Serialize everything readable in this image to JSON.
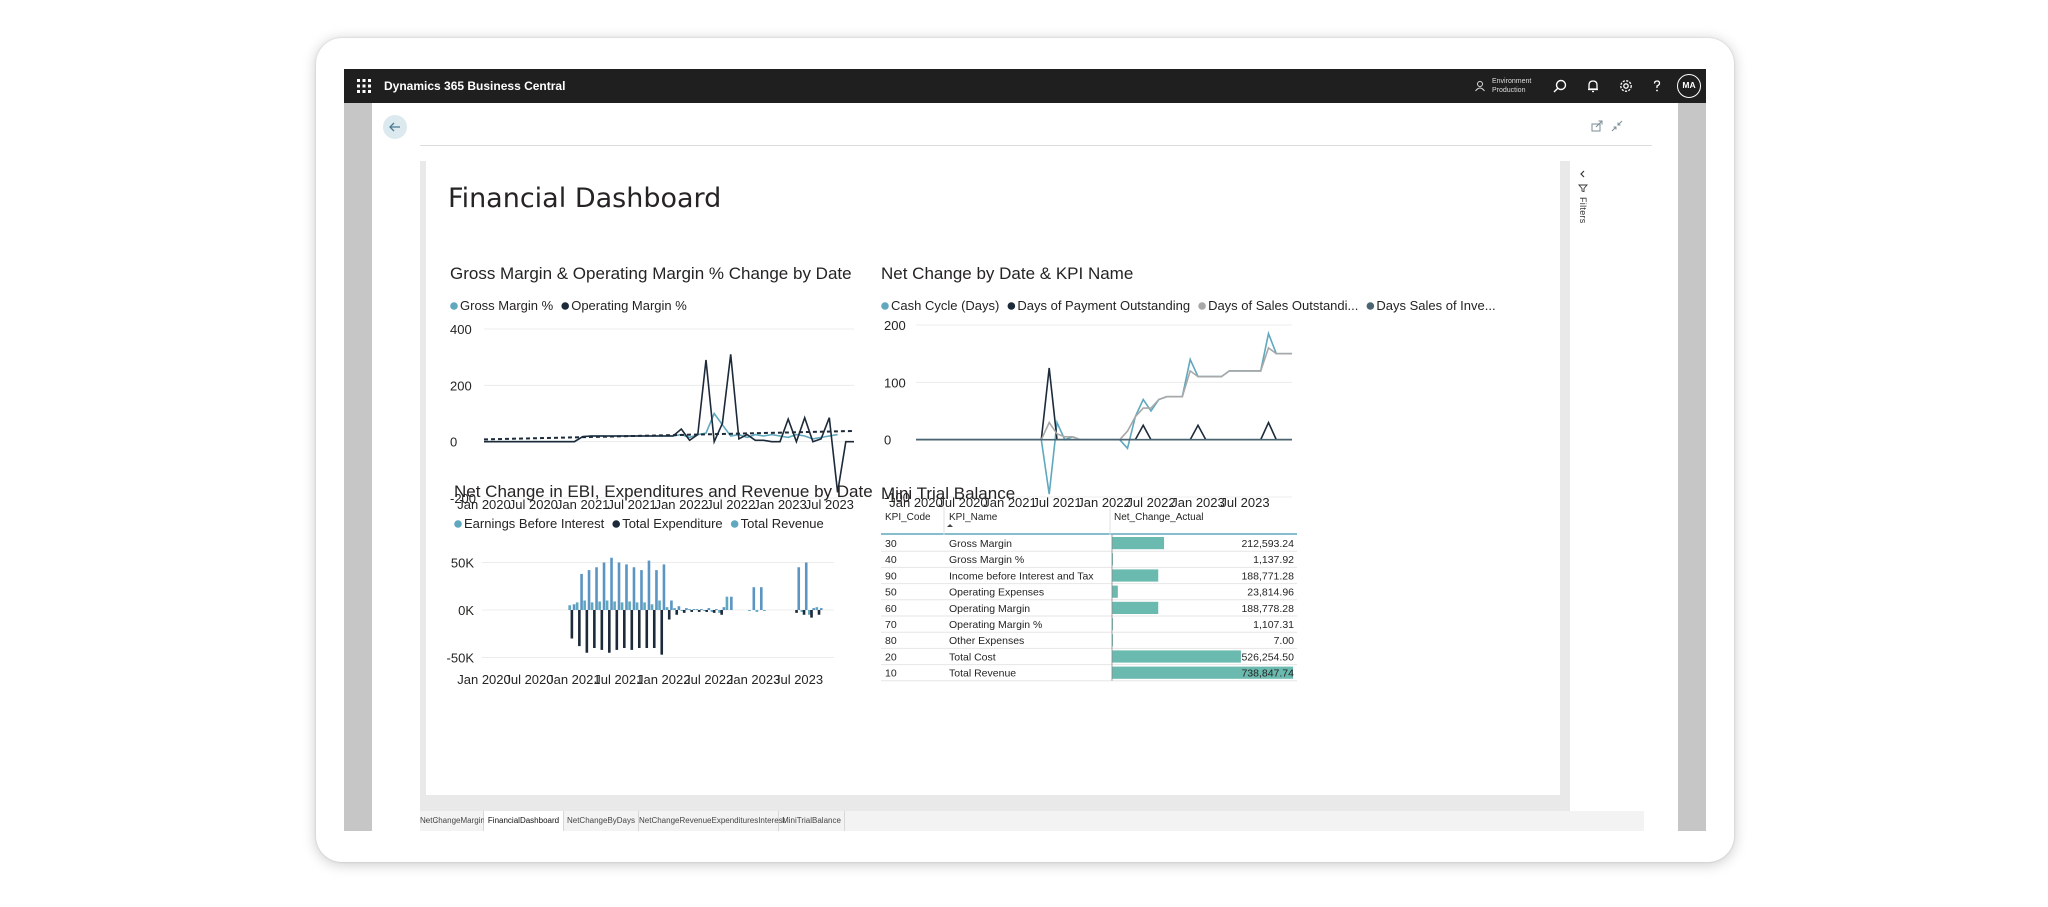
{
  "app": {
    "title": "Dynamics 365 Business Central",
    "environment_line1": "Environment",
    "environment_line2": "Production",
    "avatar_initials": "MA"
  },
  "report": {
    "title": "Financial Dashboard",
    "filters_label": "Filters"
  },
  "tabs": [
    {
      "label": "NetChangeMargin",
      "active": false
    },
    {
      "label": "FinancialDashboard",
      "active": true
    },
    {
      "label": "NetChangeByDays",
      "active": false
    },
    {
      "label": "NetChangeRevenueExpendituresInterest",
      "active": false
    },
    {
      "label": "MiniTrialBalance",
      "active": false
    }
  ],
  "colors": {
    "light_teal": "#5fa8be",
    "dark_navy": "#1c2a3a",
    "gray": "#a8a8a8",
    "slate": "#4a6472",
    "bar_teal": "#6bbab0",
    "bar_blue": "#5b95c3"
  },
  "chart_data": [
    {
      "type": "line",
      "title": "Gross Margin & Operating Margin % Change by Date",
      "legend": [
        "Gross Margin %",
        "Operating Margin %"
      ],
      "ylim": [
        -200,
        400
      ],
      "yticks": [
        "400",
        "200",
        "0",
        "-200"
      ],
      "xticks": [
        "Jan 2020",
        "Jul 2020",
        "Jan 2021",
        "Jul 2021",
        "Jan 2022",
        "Jul 2022",
        "Jan 2023",
        "Jul 2023"
      ],
      "series": [
        {
          "name": "Gross Margin %",
          "values": [
            0,
            0,
            0,
            0,
            0,
            0,
            0,
            0,
            0,
            0,
            0,
            0,
            18,
            20,
            20,
            20,
            20,
            20,
            20,
            20,
            20,
            20,
            20,
            20,
            25,
            15,
            25,
            30,
            100,
            60,
            20,
            25,
            15,
            25,
            20,
            25,
            20,
            15,
            25,
            20,
            10,
            15,
            20,
            25
          ]
        },
        {
          "name": "Operating Margin %",
          "values": [
            0,
            0,
            0,
            0,
            0,
            0,
            0,
            0,
            0,
            0,
            0,
            0,
            18,
            20,
            20,
            20,
            20,
            20,
            20,
            20,
            20,
            20,
            20,
            20,
            45,
            5,
            25,
            290,
            0,
            65,
            310,
            10,
            25,
            5,
            5,
            0,
            0,
            80,
            0,
            85,
            0,
            10,
            85,
            -180,
            0,
            0
          ]
        }
      ]
    },
    {
      "type": "line",
      "title": "Net Change by Date & KPI Name",
      "legend": [
        "Cash Cycle (Days)",
        "Days of Payment Outstanding",
        "Days of Sales Outstandi...",
        "Days Sales of Inve..."
      ],
      "ylim": [
        -100,
        200
      ],
      "yticks": [
        "200",
        "100",
        "0",
        "-100"
      ],
      "xticks": [
        "Jan 2020",
        "Jul 2020",
        "Jan 2021",
        "Jul 2021",
        "Jan 2022",
        "Jul 2022",
        "Jan 2023",
        "Jul 2023"
      ],
      "series": [
        {
          "name": "Cash Cycle (Days)",
          "values": [
            0,
            0,
            0,
            0,
            0,
            0,
            0,
            0,
            0,
            0,
            0,
            0,
            0,
            0,
            0,
            0,
            0,
            -95,
            30,
            0,
            5,
            0,
            0,
            0,
            0,
            0,
            0,
            -15,
            40,
            70,
            50,
            70,
            75,
            75,
            75,
            140,
            110,
            110,
            110,
            110,
            120,
            120,
            120,
            120,
            120,
            185,
            150,
            150,
            150
          ]
        },
        {
          "name": "Days of Payment Outstanding",
          "values": [
            0,
            0,
            0,
            0,
            0,
            0,
            0,
            0,
            0,
            0,
            0,
            0,
            0,
            0,
            0,
            0,
            0,
            125,
            0,
            0,
            0,
            0,
            0,
            0,
            0,
            0,
            0,
            0,
            0,
            25,
            0,
            0,
            0,
            0,
            0,
            0,
            25,
            0,
            0,
            0,
            0,
            0,
            0,
            0,
            0,
            30,
            0,
            0,
            0
          ]
        },
        {
          "name": "Days of Sales Outstandi...",
          "values": [
            0,
            0,
            0,
            0,
            0,
            0,
            0,
            0,
            0,
            0,
            0,
            0,
            0,
            0,
            0,
            0,
            0,
            30,
            10,
            5,
            5,
            0,
            0,
            0,
            0,
            0,
            0,
            15,
            40,
            55,
            55,
            70,
            75,
            75,
            75,
            120,
            110,
            110,
            110,
            110,
            120,
            120,
            120,
            120,
            120,
            160,
            150,
            150,
            150
          ]
        },
        {
          "name": "Days Sales of Inve...",
          "values": [
            0,
            0,
            0,
            0,
            0,
            0,
            0,
            0,
            0,
            0,
            0,
            0,
            0,
            0,
            0,
            0,
            0,
            0,
            0,
            0,
            0,
            0,
            0,
            0,
            0,
            0,
            0,
            0,
            0,
            0,
            0,
            0,
            0,
            0,
            0,
            0,
            0,
            0,
            0,
            0,
            0,
            0,
            0,
            0,
            0,
            0,
            0,
            0,
            0
          ]
        }
      ]
    },
    {
      "type": "bar",
      "title": "Net Change in EBI, Expenditures and Revenue by Date",
      "legend": [
        "Earnings Before Interest",
        "Total Expenditure",
        "Total Revenue"
      ],
      "ylim": [
        -60000,
        60000
      ],
      "yticks": [
        "50K",
        "0K",
        "-50K"
      ],
      "xticks": [
        "Jan 2020",
        "Jul 2020",
        "Jan 2021",
        "Jul 2021",
        "Jan 2022",
        "Jul 2022",
        "Jan 2023",
        "Jul 2023"
      ],
      "months": 47,
      "series": [
        {
          "name": "Earnings Before Interest",
          "values": {
            "12": 5000,
            "13": 8000,
            "14": 10000,
            "15": 8000,
            "16": 9000,
            "17": 10000,
            "18": 9000,
            "19": 8000,
            "20": 9000,
            "21": 8000,
            "22": 8000,
            "23": 6000,
            "24": 10000,
            "25": 3000,
            "26": 2000,
            "27": -1000,
            "28": 1000,
            "29": 1000,
            "30": -1000,
            "31": -2000,
            "32": -3000,
            "33": 14000,
            "36": -1000,
            "37": -2000,
            "38": -1000,
            "43": -2000,
            "44": -5000,
            "45": 3000
          }
        },
        {
          "name": "Total Expenditure",
          "values": {
            "12": -30000,
            "13": -38000,
            "14": -45000,
            "15": -40000,
            "16": -42000,
            "17": -45000,
            "18": -42000,
            "19": -40000,
            "20": -42000,
            "21": -40000,
            "22": -40000,
            "23": -40000,
            "24": -47000,
            "25": -10000,
            "26": -5000,
            "27": -3000,
            "28": -2000,
            "29": -2000,
            "30": -2000,
            "31": -3000,
            "32": -5000,
            "42": -3000,
            "43": -5000,
            "44": -8000,
            "45": -5000
          }
        },
        {
          "name": "Total Revenue",
          "values": {
            "12": 6000,
            "13": 38000,
            "14": 42000,
            "15": 45000,
            "16": 50000,
            "17": 55000,
            "18": 50000,
            "19": 48000,
            "20": 45000,
            "21": 42000,
            "22": 52000,
            "23": 42000,
            "24": 48000,
            "25": 10000,
            "26": 4000,
            "27": 2000,
            "28": 1000,
            "29": 1000,
            "30": 2000,
            "31": 1000,
            "32": 3000,
            "33": 14000,
            "36": 24000,
            "37": 24000,
            "42": 45000,
            "43": 50000,
            "44": 2000,
            "45": 2000
          }
        }
      ]
    },
    {
      "type": "table",
      "title": "Mini Trial Balance",
      "columns": [
        "KPI_Code",
        "KPI_Name",
        "Net_Change_Actual"
      ],
      "max_value": 738847.74,
      "rows": [
        {
          "code": "30",
          "name": "Gross Margin",
          "value": 212593.24,
          "label": "212,593.24"
        },
        {
          "code": "40",
          "name": "Gross Margin %",
          "value": 1137.92,
          "label": "1,137.92"
        },
        {
          "code": "90",
          "name": "Income before Interest and Tax",
          "value": 188771.28,
          "label": "188,771.28"
        },
        {
          "code": "50",
          "name": "Operating Expenses",
          "value": 23814.96,
          "label": "23,814.96"
        },
        {
          "code": "60",
          "name": "Operating Margin",
          "value": 188778.28,
          "label": "188,778.28"
        },
        {
          "code": "70",
          "name": "Operating Margin %",
          "value": 1107.31,
          "label": "1,107.31"
        },
        {
          "code": "80",
          "name": "Other Expenses",
          "value": 7.0,
          "label": "7.00"
        },
        {
          "code": "20",
          "name": "Total Cost",
          "value": 526254.5,
          "label": "526,254.50"
        },
        {
          "code": "10",
          "name": "Total Revenue",
          "value": 738847.74,
          "label": "738,847.74"
        }
      ]
    }
  ]
}
